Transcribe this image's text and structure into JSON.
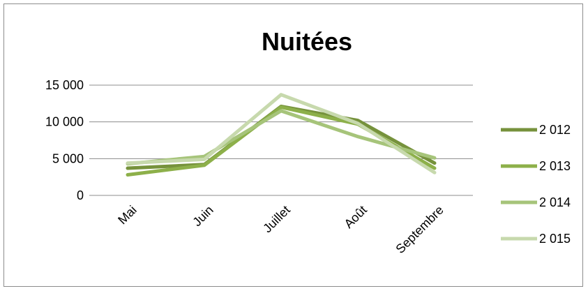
{
  "chart_data": {
    "type": "line",
    "title": "Nuitées",
    "categories": [
      "Mai",
      "Juin",
      "Juillet",
      "Août",
      "Septembre"
    ],
    "ylim": [
      0,
      15000
    ],
    "yticks": [
      {
        "value": 0,
        "label": "0"
      },
      {
        "value": 5000,
        "label": "5 000"
      },
      {
        "value": 10000,
        "label": "10 000"
      },
      {
        "value": 15000,
        "label": "15 000"
      }
    ],
    "grid": true,
    "legend_position": "right",
    "series": [
      {
        "name": "2 012",
        "color": "#76923c",
        "values": [
          3700,
          4200,
          12100,
          10200,
          4400
        ]
      },
      {
        "name": "2 013",
        "color": "#8db04a",
        "values": [
          2800,
          4100,
          12000,
          9700,
          3700
        ]
      },
      {
        "name": "2 014",
        "color": "#a6c47a",
        "values": [
          4300,
          5300,
          11500,
          8000,
          5100
        ]
      },
      {
        "name": "2 015",
        "color": "#c7d9ad",
        "values": [
          4400,
          4900,
          13700,
          9800,
          3100
        ]
      }
    ]
  }
}
